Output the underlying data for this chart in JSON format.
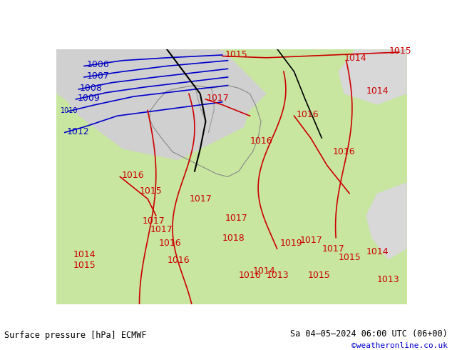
{
  "title_left": "Surface pressure [hPa] ECMWF",
  "title_right": "Sa 04–05–2024 06:00 UTC (06+00)",
  "credit": "©weatheronline.co.uk",
  "bg_color_land_green": "#c8e6a0",
  "bg_color_land_gray": "#d0d0d0",
  "bg_color_sea_light": "#e8e8e8",
  "line_color_blue": "#0000cc",
  "line_color_red": "#cc0000",
  "line_color_black": "#000000",
  "line_color_gray": "#888888",
  "text_color_blue": "#0000bb",
  "text_color_red": "#cc0000",
  "bottom_bar_color": "#c8e6a0",
  "footer_bg": "#ffffff",
  "credit_color": "#0000cc",
  "font_size_labels": 9,
  "font_size_footer": 9,
  "isobar_linewidth": 1.2,
  "border_linewidth": 0.8
}
